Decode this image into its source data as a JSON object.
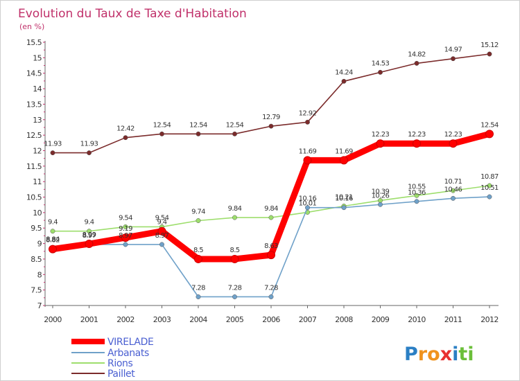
{
  "chart_data": {
    "type": "line",
    "title": "Evolution du Taux de Taxe d'Habitation",
    "subtitle": "(en %)",
    "xlabel": "",
    "ylabel": "",
    "x": [
      "2000",
      "2001",
      "2002",
      "2003",
      "2004",
      "2005",
      "2006",
      "2007",
      "2008",
      "2009",
      "2010",
      "2011",
      "2012"
    ],
    "ylim": [
      7,
      15.5
    ],
    "yticks": [
      "7",
      "7.5",
      "8",
      "8.5",
      "9",
      "9.5",
      "10",
      "10.5",
      "11",
      "11.5",
      "12",
      "12.5",
      "13",
      "13.5",
      "14",
      "14.5",
      "15",
      "15.5"
    ],
    "grid": false,
    "legend_position": "bottom-left",
    "series": [
      {
        "name": "VIRELADE",
        "color": "#ff0000",
        "values": [
          8.82,
          8.99,
          9.19,
          9.4,
          8.5,
          8.5,
          8.63,
          11.69,
          11.69,
          12.23,
          12.23,
          12.23,
          12.54
        ],
        "labels": [
          "8.82",
          "8.99",
          "9.19",
          "9.4",
          "8.5",
          "8.5",
          "8.63",
          "11.69",
          "11.69",
          "12.23",
          "12.23",
          "12.23",
          "12.54"
        ]
      },
      {
        "name": "Arbanats",
        "color": "#6fa1c9",
        "values": [
          8.84,
          8.97,
          8.97,
          8.97,
          7.28,
          7.28,
          7.28,
          10.16,
          10.16,
          10.26,
          10.36,
          10.46,
          10.51
        ],
        "labels": [
          "8.84",
          "8.97",
          "8.97",
          "8.97",
          "7.28",
          "7.28",
          "7.28",
          "10.16",
          "10.16",
          "10.26",
          "10.36",
          "10.46",
          "10.51"
        ]
      },
      {
        "name": "Rions",
        "color": "#9dde6c",
        "values": [
          9.4,
          9.4,
          9.54,
          9.54,
          9.74,
          9.84,
          9.84,
          10.01,
          10.21,
          10.39,
          10.55,
          10.71,
          10.87
        ],
        "labels": [
          "9.4",
          "9.4",
          "9.54",
          "9.54",
          "9.74",
          "9.84",
          "9.84",
          "10.01",
          "10.21",
          "10.39",
          "10.55",
          "10.71",
          "10.87"
        ]
      },
      {
        "name": "Paillet",
        "color": "#7b2b2b",
        "values": [
          11.93,
          11.93,
          12.42,
          12.54,
          12.54,
          12.54,
          12.79,
          12.92,
          14.24,
          14.53,
          14.82,
          14.97,
          15.12
        ],
        "labels": [
          "11.93",
          "11.93",
          "12.42",
          "12.54",
          "12.54",
          "12.54",
          "12.79",
          "12.92",
          "14.24",
          "14.53",
          "14.82",
          "14.97",
          "15.12"
        ]
      }
    ]
  },
  "legend": {
    "items": [
      "VIRELADE",
      "Arbanats",
      "Rions",
      "Paillet"
    ]
  },
  "brand": {
    "letters": [
      "P",
      "r",
      "o",
      "x",
      "i",
      "t",
      "i"
    ],
    "colors": [
      "#2b7fc4",
      "#f0931e",
      "#f0931e",
      "#e83030",
      "#2b7fc4",
      "#6bbf3a",
      "#6bbf3a"
    ]
  }
}
